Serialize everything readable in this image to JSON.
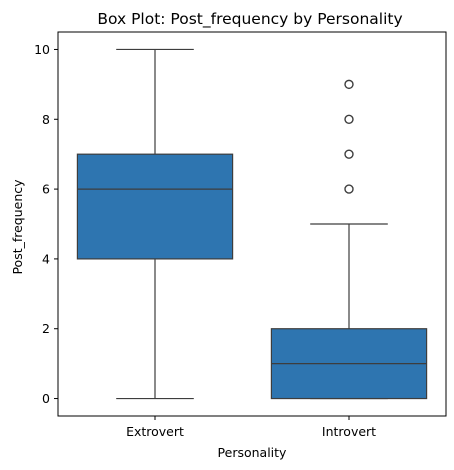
{
  "chart_data": {
    "type": "box",
    "title": "Box Plot: Post_frequency by Personality",
    "xlabel": "Personality",
    "ylabel": "Post_frequency",
    "categories": [
      "Extrovert",
      "Introvert"
    ],
    "ylim": [
      -0.5,
      10.5
    ],
    "yticks": [
      0,
      2,
      4,
      6,
      8,
      10
    ],
    "grid": false,
    "box_color": "#2e75b0",
    "line_color": "#3d3d3d",
    "boxes": [
      {
        "category": "Extrovert",
        "min": 0,
        "q1": 4,
        "median": 6,
        "q3": 7,
        "max": 10,
        "outliers": []
      },
      {
        "category": "Introvert",
        "min": 0,
        "q1": 0,
        "median": 1,
        "q3": 2,
        "max": 5,
        "outliers": [
          6,
          7,
          8,
          9
        ]
      }
    ]
  }
}
